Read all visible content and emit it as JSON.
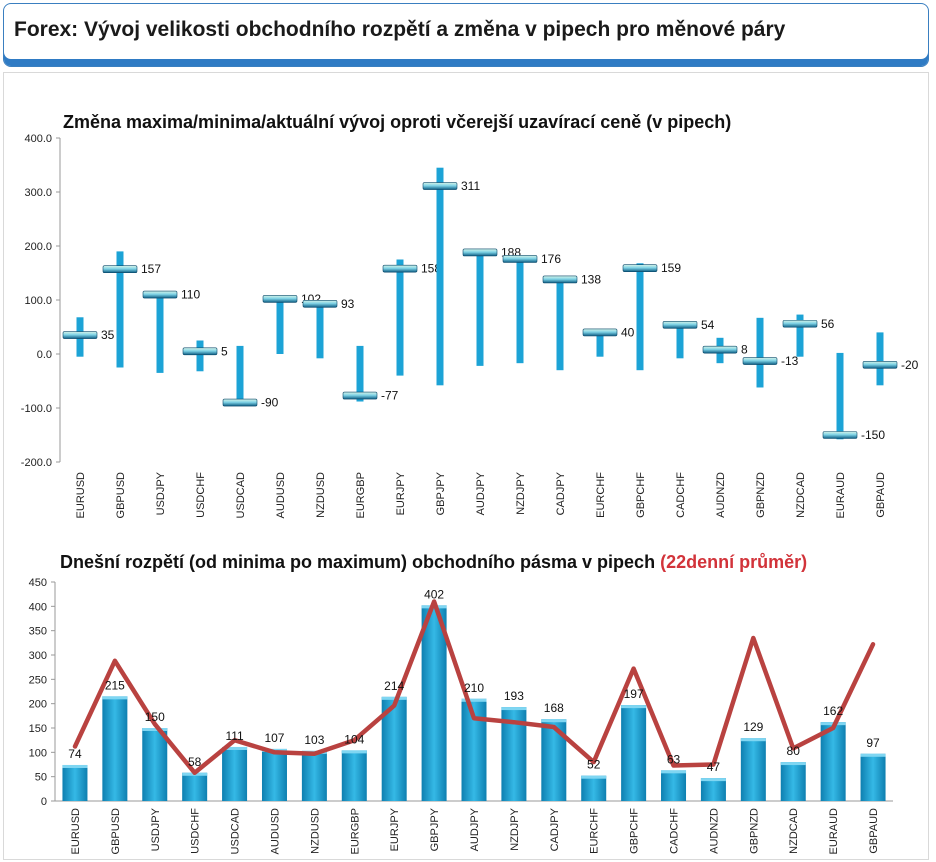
{
  "header": {
    "title": "Forex: Vývoj velikosti obchodního rozpětí a změna v pipech pro měnové páry"
  },
  "colors": {
    "bar": "#1ca3d6",
    "bar_dark": "#0e7fb0",
    "marker_top": "#d6f3e8",
    "marker_bottom": "#0d5c83",
    "line": "#b94240",
    "header_accent": "#2f7bc4",
    "title_red": "#d2333a"
  },
  "chart_data": [
    {
      "type": "bar",
      "subtype": "floating-range-with-marker",
      "title": "Změna maxima/minima/aktuální vývoj oproti včerejší uzavírací ceně (v pipech)",
      "categories": [
        "EURUSD",
        "GBPUSD",
        "USDJPY",
        "USDCHF",
        "USDCAD",
        "AUDUSD",
        "NZDUSD",
        "EURGBP",
        "EURJPY",
        "GBPJPY",
        "AUDJPY",
        "NZDJPY",
        "CADJPY",
        "EURCHF",
        "GBPCHF",
        "CADCHF",
        "AUDNZD",
        "GBPNZD",
        "NZDCAD",
        "EURAUD",
        "GBPAUD"
      ],
      "high": [
        68,
        190,
        112,
        25,
        15,
        105,
        95,
        15,
        175,
        345,
        190,
        180,
        140,
        42,
        168,
        57,
        30,
        67,
        73,
        2,
        40
      ],
      "low": [
        -5,
        -25,
        -35,
        -32,
        -92,
        0,
        -8,
        -88,
        -40,
        -58,
        -22,
        -17,
        -30,
        -5,
        -30,
        -8,
        -17,
        -62,
        -5,
        -158,
        -58
      ],
      "current": [
        35,
        157,
        110,
        5,
        -90,
        102,
        93,
        -77,
        158,
        311,
        188,
        176,
        138,
        40,
        159,
        54,
        8,
        -13,
        56,
        -150,
        -20
      ],
      "labels": [
        "35",
        "157",
        "110",
        "5",
        "-90",
        "102",
        "93",
        "-77",
        "158",
        "311",
        "188",
        "176",
        "138",
        "40",
        "159",
        "54",
        "8",
        "-13",
        "56",
        "-150",
        "-20"
      ],
      "ylim": [
        -200,
        400
      ],
      "yticks": [
        "400.0",
        "300.0",
        "200.0",
        "100.0",
        "0.0",
        "-100.0",
        "-200.0"
      ],
      "grid": false,
      "legend": "none"
    },
    {
      "type": "bar",
      "title": "Dnešní rozpětí (od minima po maximum) obchodního pásma v pipech",
      "title_highlight": "(22denní průměr)",
      "categories": [
        "EURUSD",
        "GBPUSD",
        "USDJPY",
        "USDCHF",
        "USDCAD",
        "AUDUSD",
        "NZDUSD",
        "EURGBP",
        "EURJPY",
        "GBPJPY",
        "AUDJPY",
        "NZDJPY",
        "CADJPY",
        "EURCHF",
        "GBPCHF",
        "CADCHF",
        "AUDNZD",
        "GBPNZD",
        "NZDCAD",
        "EURAUD",
        "GBPAUD"
      ],
      "values": [
        74,
        215,
        150,
        58,
        111,
        107,
        103,
        104,
        214,
        402,
        210,
        193,
        168,
        52,
        197,
        63,
        47,
        129,
        80,
        162,
        97
      ],
      "labels": [
        "74",
        "215",
        "150",
        "58",
        "111",
        "107",
        "103",
        "104",
        "214",
        "402",
        "210",
        "193",
        "168",
        "52",
        "197",
        "63",
        "47",
        "129",
        "80",
        "162",
        "97"
      ],
      "average": [
        112,
        288,
        158,
        58,
        125,
        100,
        97,
        125,
        196,
        410,
        170,
        162,
        152,
        80,
        272,
        73,
        75,
        335,
        108,
        150,
        322
      ],
      "ylim": [
        0,
        450
      ],
      "yticks": [
        "450",
        "400",
        "350",
        "300",
        "250",
        "200",
        "150",
        "100",
        "50",
        "0"
      ],
      "grid": false,
      "legend": "none"
    }
  ]
}
